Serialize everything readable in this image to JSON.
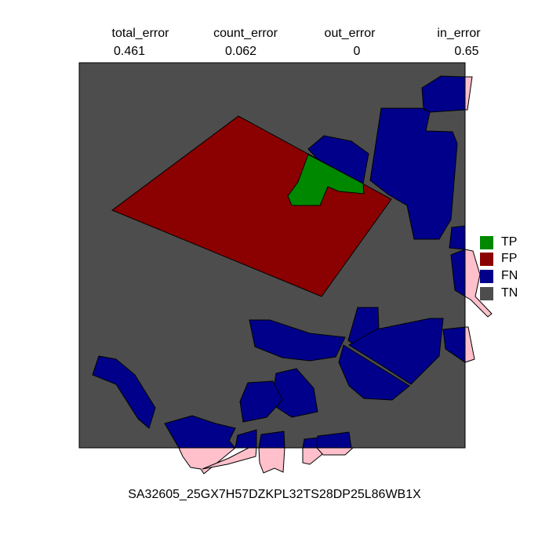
{
  "metrics": [
    {
      "label": "total_error",
      "value": "0.461"
    },
    {
      "label": "count_error",
      "value": "0.062"
    },
    {
      "label": "out_error",
      "value": "0"
    },
    {
      "label": "in_error",
      "value": "0.65"
    }
  ],
  "legend": [
    {
      "label": "TP",
      "color": "#008800"
    },
    {
      "label": "FP",
      "color": "#8b0000"
    },
    {
      "label": "FN",
      "color": "#00008b"
    },
    {
      "label": "TN",
      "color": "#4d4d4d"
    }
  ],
  "colors": {
    "background_tn": "#4d4d4d",
    "outside_region": "#ffc0cb",
    "border": "#000000"
  },
  "caption": "SA32605_25GX7H57DZKPL32TS28DP25L86WB1X"
}
